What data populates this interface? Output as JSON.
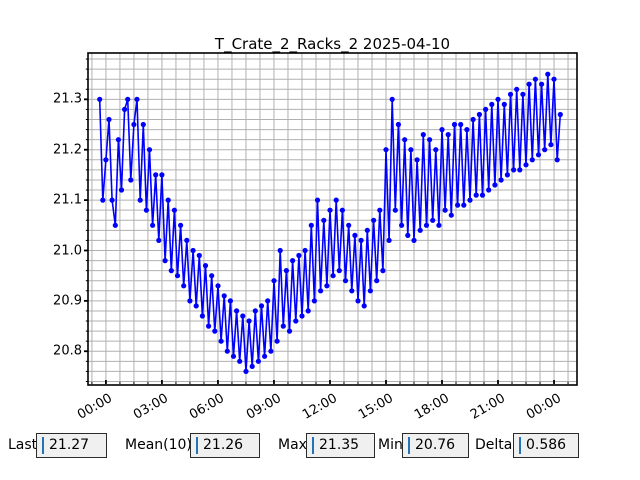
{
  "figure": {
    "background": "#ffffff",
    "frame_color": "#000000",
    "grid_color": "#b0b0b0"
  },
  "chart_data": {
    "type": "line",
    "title": "T_Crate_2_Racks_2 2025-04-10",
    "line_color": "#0000ff",
    "marker": "circle",
    "grid": true,
    "legend": null,
    "x_tick_labels": [
      "00:00",
      "03:00",
      "06:00",
      "09:00",
      "12:00",
      "15:00",
      "18:00",
      "21:00",
      "00:00"
    ],
    "x_tick_hours": [
      0,
      3,
      6,
      9,
      12,
      15,
      18,
      21,
      24
    ],
    "x_minor_step_hours": 0.75,
    "xlim_hours": [
      -0.96,
      25.23
    ],
    "y_ticks": [
      20.8,
      20.9,
      21.0,
      21.1,
      21.2,
      21.3
    ],
    "y_minor_step": 0.02,
    "ylim": [
      20.733,
      21.392
    ],
    "x_start_hours": -0.33333,
    "x_step_hours": 0.16667,
    "values": [
      21.3,
      21.1,
      21.18,
      21.26,
      21.1,
      21.05,
      21.22,
      21.12,
      21.28,
      21.3,
      21.14,
      21.25,
      21.3,
      21.1,
      21.25,
      21.08,
      21.2,
      21.05,
      21.15,
      21.02,
      21.15,
      20.98,
      21.1,
      20.96,
      21.08,
      20.95,
      21.05,
      20.93,
      21.02,
      20.9,
      21.0,
      20.89,
      20.99,
      20.87,
      20.97,
      20.85,
      20.95,
      20.84,
      20.93,
      20.82,
      20.91,
      20.8,
      20.9,
      20.79,
      20.88,
      20.78,
      20.87,
      20.76,
      20.86,
      20.77,
      20.88,
      20.78,
      20.89,
      20.79,
      20.9,
      20.8,
      20.94,
      20.82,
      21.0,
      20.85,
      20.96,
      20.84,
      20.98,
      20.86,
      20.99,
      20.87,
      21.0,
      20.88,
      21.05,
      20.9,
      21.1,
      20.92,
      21.06,
      20.93,
      21.08,
      20.95,
      21.1,
      20.96,
      21.08,
      20.94,
      21.05,
      20.92,
      21.03,
      20.9,
      21.02,
      20.89,
      21.04,
      20.92,
      21.06,
      20.94,
      21.08,
      20.96,
      21.2,
      21.02,
      21.3,
      21.08,
      21.25,
      21.05,
      21.22,
      21.03,
      21.2,
      21.02,
      21.18,
      21.04,
      21.23,
      21.05,
      21.22,
      21.06,
      21.2,
      21.05,
      21.24,
      21.08,
      21.23,
      21.07,
      21.25,
      21.09,
      21.25,
      21.09,
      21.24,
      21.1,
      21.26,
      21.11,
      21.27,
      21.11,
      21.28,
      21.12,
      21.29,
      21.13,
      21.3,
      21.14,
      21.29,
      21.15,
      21.31,
      21.16,
      21.32,
      21.16,
      21.31,
      21.17,
      21.33,
      21.18,
      21.34,
      21.19,
      21.33,
      21.2,
      21.35,
      21.21,
      21.34,
      21.18,
      21.27
    ]
  },
  "stats": {
    "last": {
      "label": "Last",
      "value": "21.27"
    },
    "mean": {
      "label": "Mean(10)",
      "value": "21.26"
    },
    "max": {
      "label": "Max",
      "value": "21.35"
    },
    "min": {
      "label": "Min",
      "value": "20.76"
    },
    "delta": {
      "label": "Delta",
      "value": "0.586"
    }
  }
}
